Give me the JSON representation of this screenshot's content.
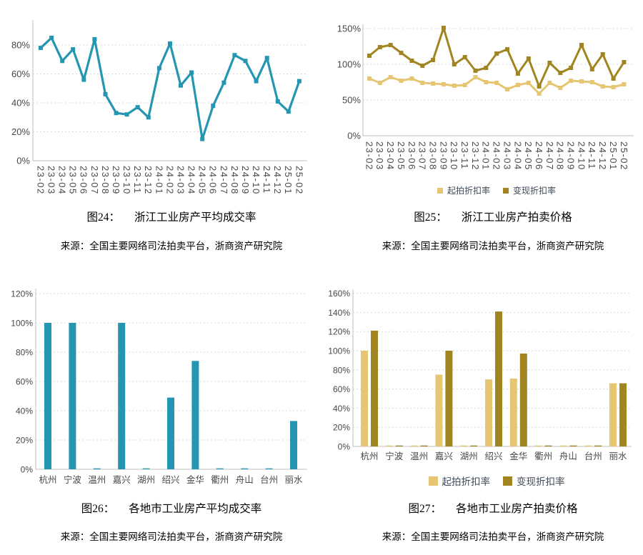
{
  "page": {
    "background": "#ffffff"
  },
  "colors": {
    "teal": "#2496B2",
    "light_gold": "#E6C673",
    "dark_gold": "#A08520",
    "grid": "#D9D9D9",
    "axis": "#BFBFBF",
    "tick_text": "#484848",
    "legend_text": "#3F4A55",
    "caption_text": "#000000"
  },
  "figures": [
    {
      "caption_label": "图24：",
      "caption_title": "浙江工业房产平均成交率",
      "source": "来源：全国主要网络司法拍卖平台，浙商资产研究院"
    },
    {
      "caption_label": "图25：",
      "caption_title": "浙江工业房产拍卖价格",
      "source": "来源：全国主要网络司法拍卖平台，浙商资产研究院"
    },
    {
      "caption_label": "图26：",
      "caption_title": "各地市工业房产平均成交率",
      "source": "来源：全国主要网络司法拍卖平台，浙商资产研究院"
    },
    {
      "caption_label": "图27：",
      "caption_title": "各地市工业房产拍卖价格",
      "source": "来源：全国主要网络司法拍卖平台，浙商资产研究院"
    }
  ],
  "chart_data": [
    {
      "type": "line",
      "title": "浙江工业房产平均成交率",
      "x": [
        "23-02",
        "23-03",
        "23-04",
        "23-05",
        "23-06",
        "23-07",
        "23-08",
        "23-09",
        "23-10",
        "23-11",
        "23-12",
        "24-01",
        "24-02",
        "24-03",
        "24-04",
        "24-05",
        "24-06",
        "24-07",
        "24-08",
        "24-09",
        "24-10",
        "24-11",
        "24-12",
        "25-01",
        "25-02"
      ],
      "series": [
        {
          "color_key": "teal",
          "values": [
            78,
            85,
            69,
            77,
            56,
            84,
            46,
            33,
            32,
            37,
            30,
            64,
            81,
            52,
            61,
            15,
            38,
            54,
            73,
            69,
            55,
            71,
            41,
            34,
            55
          ]
        }
      ],
      "yticks": [
        0,
        20,
        40,
        60,
        80
      ],
      "ytick_suffix": "%",
      "ylim": [
        0,
        92
      ],
      "grid": "dashed-horizontal",
      "legend_position": "none"
    },
    {
      "type": "line",
      "title": "浙江工业房产拍卖价格",
      "x": [
        "23-02",
        "23-03",
        "23-04",
        "23-05",
        "23-06",
        "23-07",
        "23-08",
        "23-09",
        "23-10",
        "23-11",
        "23-12",
        "24-01",
        "24-02",
        "24-03",
        "24-04",
        "24-05",
        "24-06",
        "24-07",
        "24-08",
        "24-09",
        "24-10",
        "24-11",
        "24-12",
        "25-01",
        "25-02"
      ],
      "series": [
        {
          "name": "起拍折扣率",
          "color_key": "light_gold",
          "values": [
            80,
            74,
            82,
            77,
            80,
            74,
            73,
            72,
            70,
            71,
            82,
            75,
            74,
            65,
            71,
            74,
            59,
            74,
            67,
            77,
            76,
            75,
            69,
            68,
            72
          ]
        },
        {
          "name": "变现折扣率",
          "color_key": "dark_gold",
          "values": [
            112,
            124,
            127,
            116,
            105,
            98,
            106,
            151,
            100,
            110,
            91,
            95,
            115,
            121,
            87,
            108,
            69,
            102,
            88,
            95,
            127,
            93,
            114,
            80,
            103
          ]
        }
      ],
      "yticks": [
        0,
        50,
        100,
        150
      ],
      "ytick_suffix": "%",
      "ylim": [
        0,
        160
      ],
      "grid": "dashed-horizontal",
      "legend_position": "bottom"
    },
    {
      "type": "bar",
      "title": "各地市工业房产平均成交率",
      "categories": [
        "杭州",
        "宁波",
        "温州",
        "嘉兴",
        "湖州",
        "绍兴",
        "金华",
        "衢州",
        "舟山",
        "台州",
        "丽水"
      ],
      "series": [
        {
          "color_key": "teal",
          "values": [
            100,
            100,
            0.5,
            100,
            0.5,
            49,
            74,
            0.5,
            0.5,
            0.5,
            33
          ]
        }
      ],
      "yticks": [
        0,
        20,
        40,
        60,
        80,
        100,
        120
      ],
      "ytick_suffix": "%",
      "ylim": [
        0,
        120
      ],
      "grid": "dashed-horizontal",
      "legend_position": "none"
    },
    {
      "type": "bar",
      "title": "各地市工业房产拍卖价格",
      "categories": [
        "杭州",
        "宁波",
        "温州",
        "嘉兴",
        "湖州",
        "绍兴",
        "金华",
        "衢州",
        "舟山",
        "台州",
        "丽水"
      ],
      "series": [
        {
          "name": "起拍折扣率",
          "color_key": "light_gold",
          "values": [
            100,
            0.5,
            0.5,
            75,
            0.5,
            70,
            71,
            0.5,
            0.5,
            0.5,
            66
          ]
        },
        {
          "name": "变现折扣率",
          "color_key": "dark_gold",
          "values": [
            121,
            0.5,
            0.5,
            100,
            0.5,
            141,
            97,
            0.5,
            0.5,
            0.5,
            66
          ]
        }
      ],
      "yticks": [
        0,
        20,
        40,
        60,
        80,
        100,
        120,
        140,
        160
      ],
      "ytick_suffix": "%",
      "ylim": [
        0,
        160
      ],
      "grid": "dashed-horizontal",
      "legend_position": "bottom"
    }
  ]
}
